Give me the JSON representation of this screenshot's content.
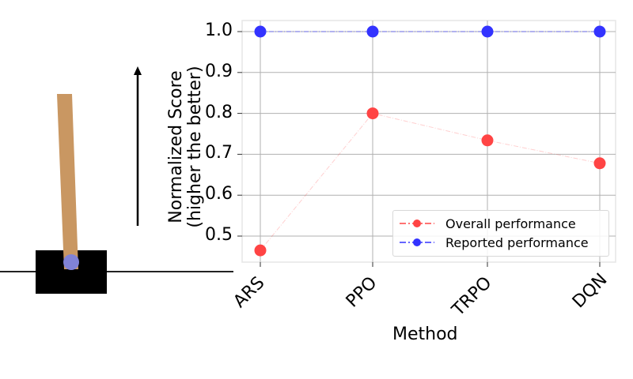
{
  "chart_data": {
    "type": "line",
    "title": "",
    "xlabel": "Method",
    "ylabel": "Normalized Score\n(higher the better)",
    "ylabel_lines": [
      "Normalized Score",
      "(higher the better)"
    ],
    "categories": [
      "ARS",
      "PPO",
      "TRPO",
      "DQN"
    ],
    "series": [
      {
        "name": "Overall performance",
        "color": "#ff4444",
        "linestyle": "dashdot",
        "marker": "circle",
        "values": [
          0.465,
          0.8,
          0.734,
          0.678
        ]
      },
      {
        "name": "Reported performance",
        "color": "#3333ff",
        "linestyle": "dashdot",
        "marker": "circle",
        "values": [
          1.0,
          1.0,
          1.0,
          1.0
        ]
      }
    ],
    "yticks": [
      "0.5",
      "0.6",
      "0.7",
      "0.8",
      "0.9",
      "1.0"
    ],
    "ylim": [
      0.44,
      1.03
    ],
    "grid": true,
    "legend_position": "lower right",
    "xtick_rotation": 45
  },
  "annotations": {
    "arrow_direction": "up",
    "illustration": "cartpole"
  },
  "colors": {
    "pole": "#c99762",
    "cart": "#000000",
    "axle": "#8182d6",
    "track": "#000000",
    "grid": "#b0b0b0",
    "spine": "#e6e6e6"
  }
}
